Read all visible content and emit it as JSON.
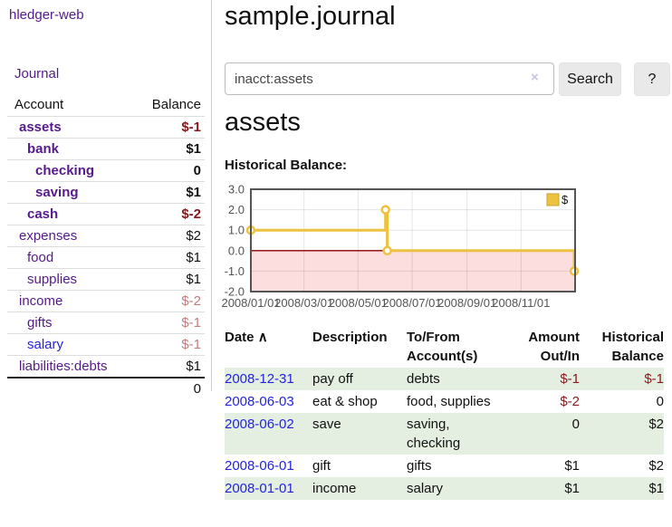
{
  "app": {
    "title": "hledger-web"
  },
  "sidebar": {
    "journal_link": "Journal",
    "accounts_table": {
      "account_header": "Account",
      "balance_header": "Balance",
      "rows": [
        {
          "name": "assets",
          "depth": 1,
          "bold": true,
          "link_color": "purple",
          "balance": "$-1",
          "balance_tone": "neg-strong"
        },
        {
          "name": "bank",
          "depth": 2,
          "bold": true,
          "link_color": "purple",
          "balance": "$1",
          "balance_tone": "pos"
        },
        {
          "name": "checking",
          "depth": 3,
          "bold": true,
          "link_color": "purple",
          "balance": "0",
          "balance_tone": "pos"
        },
        {
          "name": "saving",
          "depth": 3,
          "bold": true,
          "link_color": "purple",
          "balance": "$1",
          "balance_tone": "pos"
        },
        {
          "name": "cash",
          "depth": 2,
          "bold": true,
          "link_color": "purple",
          "balance": "$-2",
          "balance_tone": "neg-strong"
        },
        {
          "name": "expenses",
          "depth": 1,
          "bold": false,
          "link_color": "purple",
          "balance": "$2",
          "balance_tone": "pos"
        },
        {
          "name": "food",
          "depth": 2,
          "bold": false,
          "link_color": "purple",
          "balance": "$1",
          "balance_tone": "pos"
        },
        {
          "name": "supplies",
          "depth": 2,
          "bold": false,
          "link_color": "purple",
          "balance": "$1",
          "balance_tone": "pos"
        },
        {
          "name": "income",
          "depth": 1,
          "bold": false,
          "link_color": "purple",
          "balance": "$-2",
          "balance_tone": "neg-weak"
        },
        {
          "name": "gifts",
          "depth": 2,
          "bold": false,
          "link_color": "purple",
          "balance": "$-1",
          "balance_tone": "neg-weak"
        },
        {
          "name": "salary",
          "depth": 2,
          "bold": false,
          "link_color": "blue",
          "balance": "$-1",
          "balance_tone": "neg-weak"
        },
        {
          "name": "liabilities:debts",
          "depth": 1,
          "bold": false,
          "link_color": "purple",
          "balance": "$1",
          "balance_tone": "pos"
        }
      ],
      "total": "0"
    }
  },
  "main": {
    "title": "sample.journal",
    "search": {
      "value": "inacct:assets",
      "clear_icon": "×",
      "button_label": "Search",
      "help_label": "?"
    },
    "account_heading": "assets",
    "chart_label": "Historical Balance:"
  },
  "chart_data": {
    "type": "line",
    "title": "Historical Balance",
    "series": [
      {
        "name": "$",
        "color": "#edc240",
        "step": true,
        "points": [
          [
            "2008-01-01",
            1
          ],
          [
            "2008-06-01",
            2
          ],
          [
            "2008-06-03",
            0
          ],
          [
            "2008-12-31",
            -1
          ]
        ]
      }
    ],
    "ylim": [
      -2,
      3
    ],
    "yticks": [
      3.0,
      2.0,
      1.0,
      0.0,
      -1.0,
      -2.0
    ],
    "ytick_labels": [
      "3.0",
      "2.0",
      "1.0",
      "0.0",
      "-1.0",
      "-2.0"
    ],
    "xlim": [
      "2008-01-01",
      "2009-01-01"
    ],
    "xticks": [
      "2008-01-01",
      "2008-03-01",
      "2008-05-01",
      "2008-07-01",
      "2008-09-01",
      "2008-11-01"
    ],
    "xtick_labels": [
      "2008/01/01",
      "2008/03/01",
      "2008/05/01",
      "2008/07/01",
      "2008/09/01",
      "2008/11/01"
    ],
    "legend": {
      "position": "top-right",
      "entries": [
        {
          "label": "$",
          "color": "#edc240"
        }
      ]
    },
    "grid": true,
    "zero_line_color": "#8b0000",
    "negative_region_color": "#fcdede",
    "border_color": "#545454",
    "tick_label_color": "#545454"
  },
  "register": {
    "headers": {
      "date": "Date",
      "sort_icon": "∧",
      "description": "Description",
      "accounts": "To/From Account(s)",
      "amount": "Amount Out/In",
      "balance": "Historical Balance"
    },
    "rows": [
      {
        "date": "2008-12-31",
        "description": "pay off",
        "accounts": "debts",
        "amount": "$-1",
        "balance": "$-1"
      },
      {
        "date": "2008-06-03",
        "description": "eat & shop",
        "accounts": "food, supplies",
        "amount": "$-2",
        "balance": "0"
      },
      {
        "date": "2008-06-02",
        "description": "save",
        "accounts": "saving, checking",
        "amount": "0",
        "balance": "$2"
      },
      {
        "date": "2008-06-01",
        "description": "gift",
        "accounts": "gifts",
        "amount": "$1",
        "balance": "$2"
      },
      {
        "date": "2008-01-01",
        "description": "income",
        "accounts": "salary",
        "amount": "$1",
        "balance": "$1"
      }
    ]
  },
  "colors": {
    "link_purple": "#551a8b",
    "link_blue": "#2323dd",
    "negative_strong": "#861919",
    "negative_weak": "#c47c7c",
    "row_green": "#e4efe2",
    "series_gold": "#edc240"
  }
}
